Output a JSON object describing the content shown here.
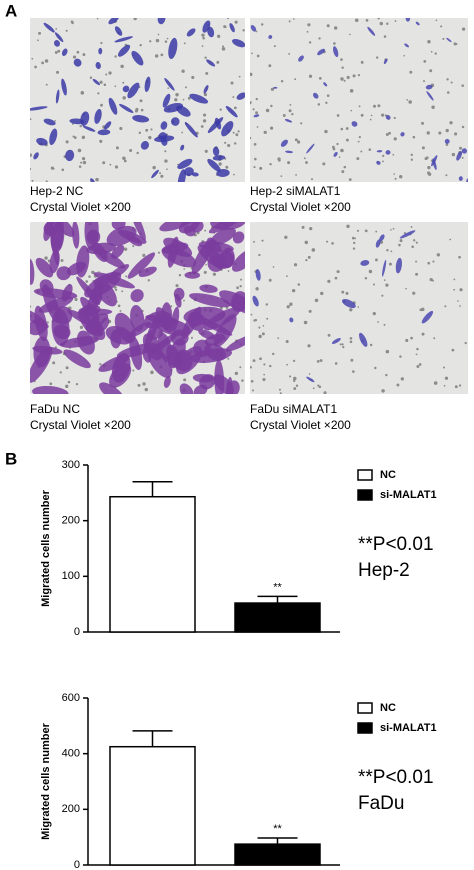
{
  "panel_a": {
    "label": "A",
    "images": [
      {
        "caption": [
          "Hep-2 NC",
          "Crystal Violet ×200"
        ]
      },
      {
        "caption": [
          "Hep-2 siMALAT1",
          "Crystal Violet ×200"
        ]
      },
      {
        "caption": [
          "FaDu NC",
          "Crystal Violet ×200"
        ]
      },
      {
        "caption": [
          "FaDu siMALAT1",
          "Crystal Violet ×200"
        ]
      }
    ]
  },
  "panel_b": {
    "label": "B"
  },
  "chart_data": [
    {
      "type": "bar",
      "y_label": "Migrated cells number",
      "ylim": [
        0,
        300
      ],
      "yticks": [
        0,
        100,
        200,
        300
      ],
      "series": [
        {
          "name": "NC",
          "color": "#ffffff",
          "values": [
            243
          ],
          "errors": [
            27
          ]
        },
        {
          "name": "si-MALAT1",
          "color": "#000000",
          "values": [
            52
          ],
          "errors": [
            12
          ]
        }
      ],
      "significance_label": "**",
      "annotations": [
        "**P<0.01",
        "Hep-2"
      ]
    },
    {
      "type": "bar",
      "y_label": "Migrated cells number",
      "ylim": [
        0,
        600
      ],
      "yticks": [
        0,
        200,
        400,
        600
      ],
      "series": [
        {
          "name": "NC",
          "color": "#ffffff",
          "values": [
            425
          ],
          "errors": [
            57
          ]
        },
        {
          "name": "si-MALAT1",
          "color": "#000000",
          "values": [
            75
          ],
          "errors": [
            22
          ]
        }
      ],
      "significance_label": "**",
      "annotations": [
        "**P<0.01",
        "FaDu"
      ]
    }
  ]
}
